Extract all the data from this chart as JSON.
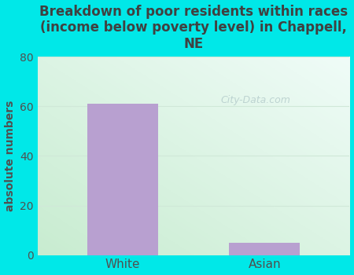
{
  "categories": [
    "White",
    "Asian"
  ],
  "values": [
    61,
    5
  ],
  "bar_color": "#b8a0d0",
  "title": "Breakdown of poor residents within races\n(income below poverty level) in Chappell,\nNE",
  "ylabel": "absolute numbers",
  "ylim": [
    0,
    80
  ],
  "yticks": [
    0,
    20,
    40,
    60,
    80
  ],
  "background_color": "#00e8e8",
  "plot_bg_left": "#c8ecd0",
  "plot_bg_right": "#eaf8f4",
  "title_color": "#404040",
  "axis_label_color": "#505050",
  "tick_color": "#505050",
  "grid_color": "#d0e8d8",
  "watermark": "City-Data.com",
  "title_fontsize": 12,
  "ylabel_fontsize": 10
}
